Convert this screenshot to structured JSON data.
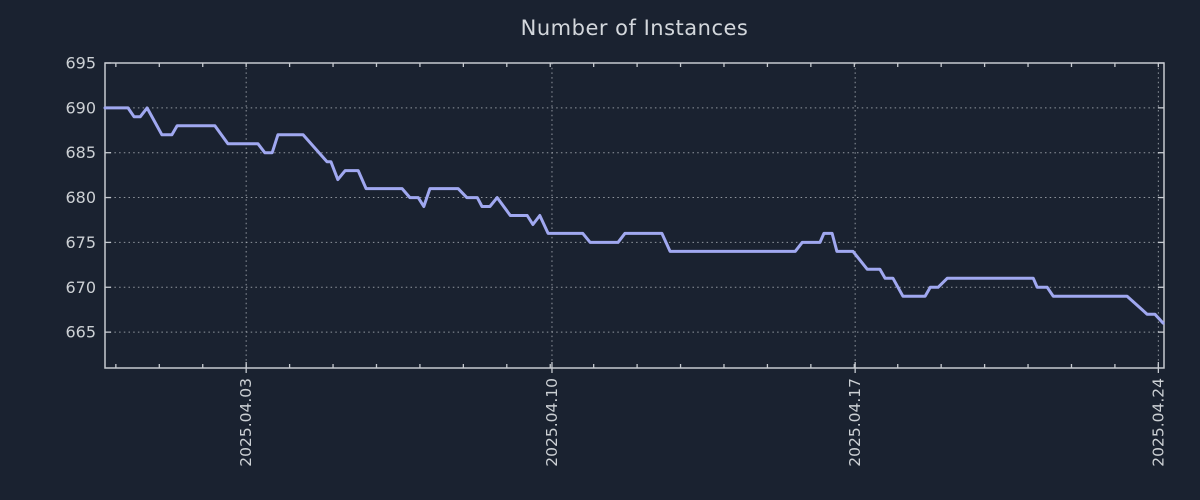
{
  "chart_data": {
    "type": "line",
    "title": "Number of Instances",
    "xlabel": "",
    "ylabel": "",
    "legend": "none",
    "grid": "dotted",
    "x_unit": "days since left edge (left edge ~ 2025.03.30 18:00)",
    "xlim": [
      0,
      24.38
    ],
    "ylim": [
      661,
      695
    ],
    "yticks": [
      665,
      670,
      675,
      680,
      685,
      690,
      695
    ],
    "xticks": [
      {
        "t": 3.25,
        "label": "2025.04.03"
      },
      {
        "t": 10.29,
        "label": "2025.04.10"
      },
      {
        "t": 17.27,
        "label": "2025.04.17"
      },
      {
        "t": 24.25,
        "label": "2025.04.24"
      }
    ],
    "minor_xtick_start": 0.25,
    "minor_xtick_step": 1,
    "minor_xtick_count": 25,
    "series": [
      {
        "name": "instances",
        "color": "#a0a8f0",
        "points": [
          [
            0.0,
            690
          ],
          [
            0.53,
            690
          ],
          [
            0.67,
            689
          ],
          [
            0.81,
            689
          ],
          [
            0.97,
            690
          ],
          [
            1.31,
            687
          ],
          [
            1.54,
            687
          ],
          [
            1.66,
            688
          ],
          [
            2.53,
            688
          ],
          [
            2.83,
            686
          ],
          [
            3.52,
            686
          ],
          [
            3.68,
            685
          ],
          [
            3.85,
            685
          ],
          [
            3.98,
            687
          ],
          [
            4.56,
            687
          ],
          [
            5.11,
            684
          ],
          [
            5.2,
            684
          ],
          [
            5.36,
            682
          ],
          [
            5.53,
            683
          ],
          [
            5.83,
            683
          ],
          [
            6.01,
            681
          ],
          [
            6.84,
            681
          ],
          [
            7.02,
            680
          ],
          [
            7.21,
            680
          ],
          [
            7.34,
            679
          ],
          [
            7.48,
            681
          ],
          [
            8.13,
            681
          ],
          [
            8.33,
            680
          ],
          [
            8.57,
            680
          ],
          [
            8.68,
            679
          ],
          [
            8.86,
            679
          ],
          [
            9.03,
            680
          ],
          [
            9.33,
            678
          ],
          [
            9.72,
            678
          ],
          [
            9.85,
            677
          ],
          [
            10.01,
            678
          ],
          [
            10.2,
            676
          ],
          [
            11.0,
            676
          ],
          [
            11.17,
            675
          ],
          [
            11.81,
            675
          ],
          [
            11.97,
            676
          ],
          [
            12.82,
            676
          ],
          [
            13.01,
            674
          ],
          [
            15.89,
            674
          ],
          [
            16.05,
            675
          ],
          [
            16.46,
            675
          ],
          [
            16.55,
            676
          ],
          [
            16.74,
            676
          ],
          [
            16.85,
            674
          ],
          [
            17.22,
            674
          ],
          [
            17.55,
            672
          ],
          [
            17.84,
            672
          ],
          [
            17.96,
            671
          ],
          [
            18.14,
            671
          ],
          [
            18.37,
            669
          ],
          [
            18.88,
            669
          ],
          [
            19.0,
            670
          ],
          [
            19.18,
            670
          ],
          [
            19.39,
            671
          ],
          [
            21.37,
            671
          ],
          [
            21.46,
            670
          ],
          [
            21.69,
            670
          ],
          [
            21.83,
            669
          ],
          [
            23.53,
            669
          ],
          [
            23.99,
            667
          ],
          [
            24.17,
            667
          ],
          [
            24.36,
            666
          ]
        ]
      }
    ],
    "colors": {
      "background": "#1a2230",
      "frame": "#c6cad0",
      "grid": "#b9bec4",
      "text": "#ccd0d4",
      "title_text": "#d3d7dc",
      "line": "#a0a8f0"
    }
  }
}
